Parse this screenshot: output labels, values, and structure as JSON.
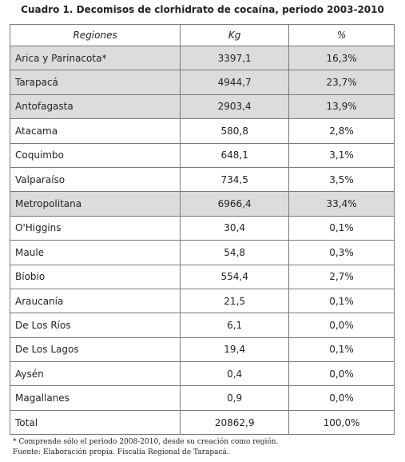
{
  "title": "Cuadro 1. Decomisos de clorhidrato de cocaína, periodo 2003-2010",
  "table": {
    "header": [
      "Regiones",
      "Kg",
      "%"
    ],
    "rows": [
      [
        "Arica y Parinacota*",
        "3397,1",
        "16,3%"
      ],
      [
        "Tarapacá",
        "4944,7",
        "23,7%"
      ],
      [
        "Antofagasta",
        "2903,4",
        "13,9%"
      ],
      [
        "Atacama",
        "580,8",
        "2,8%"
      ],
      [
        "Coquimbo",
        "648,1",
        "3,1%"
      ],
      [
        "Valparaíso",
        "734,5",
        "3,5%"
      ],
      [
        "Metropolitana",
        "6966,4",
        "33,4%"
      ],
      [
        "O'Higgins",
        "30,4",
        "0,1%"
      ],
      [
        "Maule",
        "54,8",
        "0,3%"
      ],
      [
        "Bíobio",
        "554,4",
        "2,7%"
      ],
      [
        "Araucanía",
        "21,5",
        "0,1%"
      ],
      [
        "De Los Ríos",
        "6,1",
        "0,0%"
      ],
      [
        "De Los Lagos",
        "19,4",
        "0,1%"
      ],
      [
        "Aysén",
        "0,4",
        "0,0%"
      ],
      [
        "Magallanes",
        "0,9",
        "0,0%"
      ],
      [
        "Total",
        "20862,9",
        "100,0%"
      ]
    ],
    "highlighted_rows": [
      0,
      1,
      2,
      6
    ]
  },
  "notes": [
    "* Comprende sólo el periodo 2008-2010, desde su creación como región.",
    "Fuente: Elaboración propia. Fiscalía Regional de Tarapacá."
  ]
}
